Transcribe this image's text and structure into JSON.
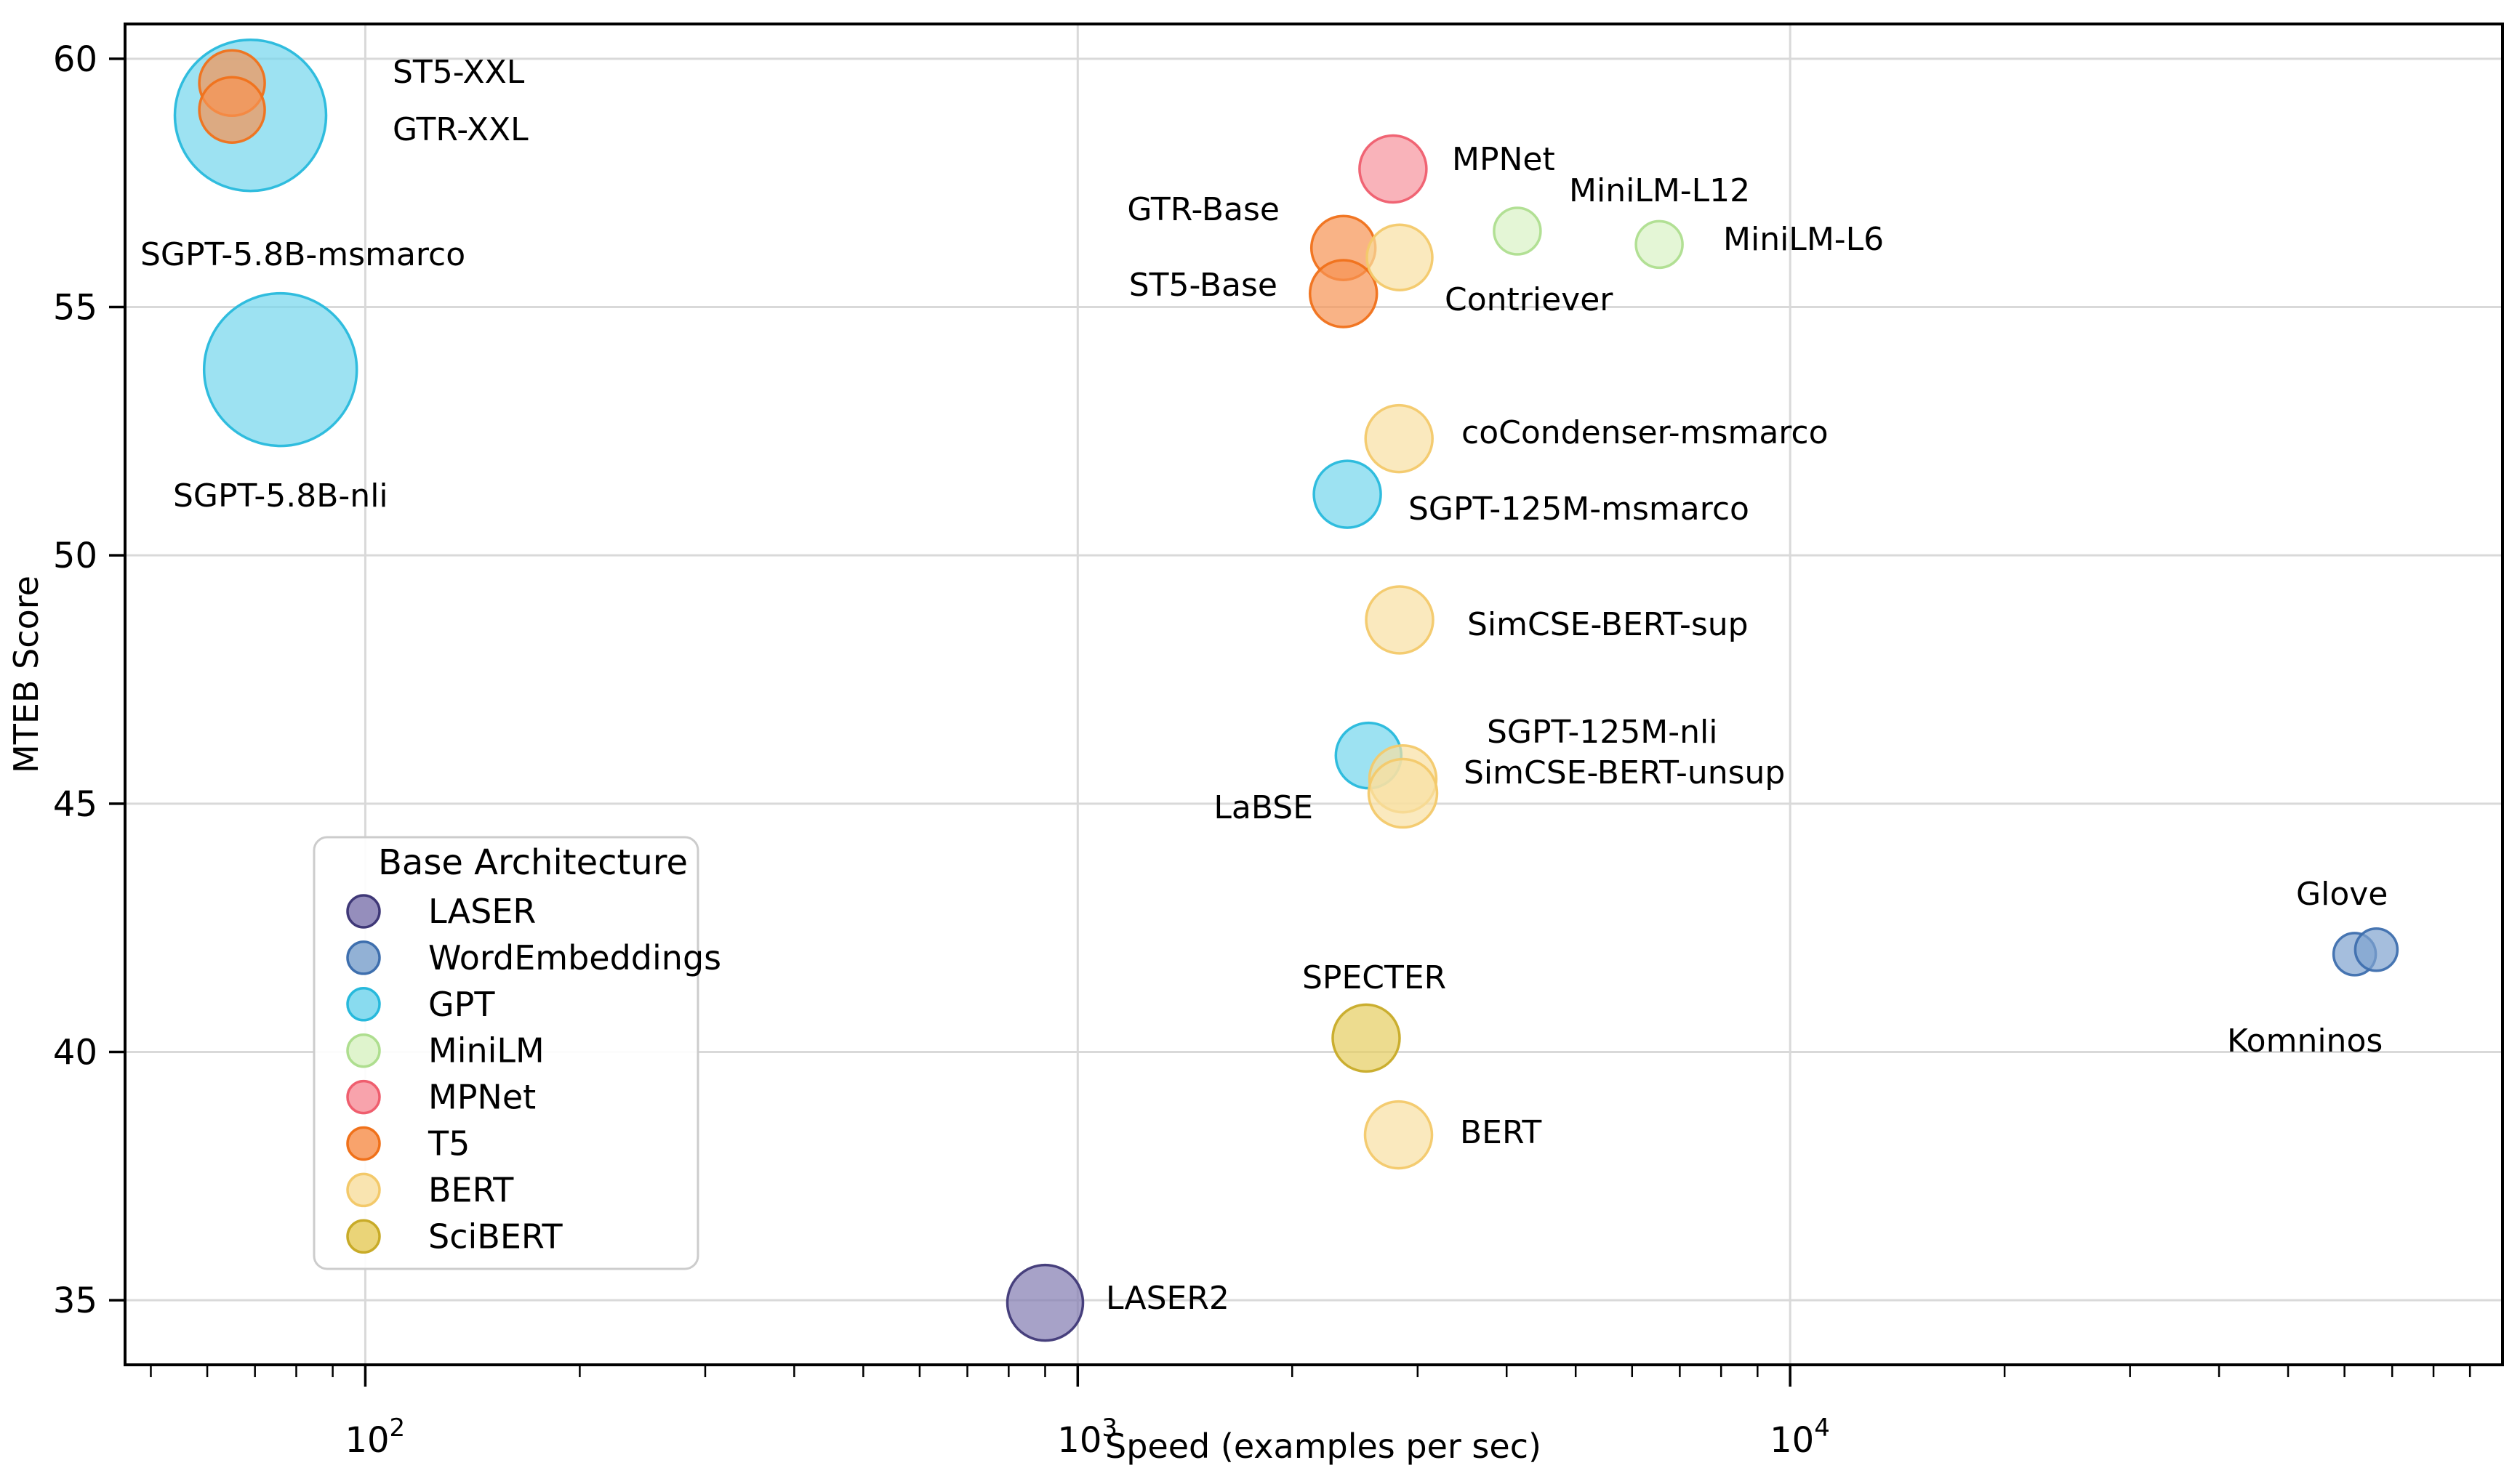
{
  "chart_data": {
    "type": "scatter",
    "title": "",
    "xlabel": "Speed (examples per sec)",
    "ylabel": "MTEB Score",
    "x_scale": "log",
    "xlim": [
      46,
      100000
    ],
    "ylim": [
      33.7,
      60.7
    ],
    "x_ticks": [
      {
        "value": 100,
        "base": "10",
        "exponent": "2"
      },
      {
        "value": 1000,
        "base": "10",
        "exponent": "3"
      },
      {
        "value": 10000,
        "base": "10",
        "exponent": "4"
      }
    ],
    "y_ticks": [
      35,
      40,
      45,
      50,
      55,
      60
    ],
    "grid": true,
    "grid_color": "#d9d9d9",
    "spine_color": "#000000",
    "legend": {
      "title": "Base Architecture",
      "position": "lower left",
      "entries": [
        {
          "label": "LASER",
          "fill": "#827ab0",
          "edge": "#3f3877"
        },
        {
          "label": "WordEmbeddings",
          "fill": "#7fa3ce",
          "edge": "#3e6fae"
        },
        {
          "label": "GPT",
          "fill": "#74d5ec",
          "edge": "#27b9dc"
        },
        {
          "label": "MiniLM",
          "fill": "#d9f2c4",
          "edge": "#aede8f"
        },
        {
          "label": "MPNet",
          "fill": "#f7939d",
          "edge": "#ef5e6e"
        },
        {
          "label": "T5",
          "fill": "#f79352",
          "edge": "#f0711a"
        },
        {
          "label": "BERT",
          "fill": "#f8dfa2",
          "edge": "#f3c96a"
        },
        {
          "label": "SciBERT",
          "fill": "#e6cd60",
          "edge": "#c8ab28"
        }
      ]
    },
    "points": [
      {
        "name": "SGPT-5.8B-msmarco",
        "architecture": "GPT",
        "speed": 69,
        "score": 58.86,
        "marker_radius": 104
      },
      {
        "name": "ST5-XXL",
        "architecture": "T5",
        "speed": 65,
        "score": 59.51,
        "marker_radius": 45
      },
      {
        "name": "GTR-XXL",
        "architecture": "T5",
        "speed": 65,
        "score": 58.97,
        "marker_radius": 45
      },
      {
        "name": "SGPT-5.8B-nli",
        "architecture": "GPT",
        "speed": 76,
        "score": 53.74,
        "marker_radius": 105
      },
      {
        "name": "MPNet",
        "architecture": "MPNet",
        "speed": 2770,
        "score": 57.78,
        "marker_radius": 46
      },
      {
        "name": "GTR-Base",
        "architecture": "T5",
        "speed": 2360,
        "score": 56.19,
        "marker_radius": 44
      },
      {
        "name": "ST5-Base",
        "architecture": "T5",
        "speed": 2360,
        "score": 55.27,
        "marker_radius": 46
      },
      {
        "name": "Contriever",
        "architecture": "BERT",
        "speed": 2830,
        "score": 56.0,
        "marker_radius": 45
      },
      {
        "name": "MiniLM-L12",
        "architecture": "MiniLM",
        "speed": 4140,
        "score": 56.53,
        "marker_radius": 32
      },
      {
        "name": "MiniLM-L6",
        "architecture": "MiniLM",
        "speed": 6550,
        "score": 56.26,
        "marker_radius": 32
      },
      {
        "name": "SGPT-125M-msmarco",
        "architecture": "GPT",
        "speed": 2390,
        "score": 51.23,
        "marker_radius": 46
      },
      {
        "name": "coCondenser-msmarco",
        "architecture": "BERT",
        "speed": 2825,
        "score": 52.35,
        "marker_radius": 46
      },
      {
        "name": "SimCSE-BERT-sup",
        "architecture": "BERT",
        "speed": 2830,
        "score": 48.7,
        "marker_radius": 46
      },
      {
        "name": "SGPT-125M-nli",
        "architecture": "GPT",
        "speed": 2560,
        "score": 45.97,
        "marker_radius": 45
      },
      {
        "name": "SimCSE-BERT-unsup",
        "architecture": "BERT",
        "speed": 2860,
        "score": 45.5,
        "marker_radius": 46
      },
      {
        "name": "LaBSE",
        "architecture": "BERT",
        "speed": 2860,
        "score": 45.21,
        "marker_radius": 47
      },
      {
        "name": "Glove",
        "architecture": "WordEmbeddings",
        "speed": 62000,
        "score": 41.97,
        "marker_radius": 29
      },
      {
        "name": "Komninos",
        "architecture": "WordEmbeddings",
        "speed": 66500,
        "score": 42.06,
        "marker_radius": 29
      },
      {
        "name": "SPECTER",
        "architecture": "SciBERT",
        "speed": 2540,
        "score": 40.28,
        "marker_radius": 46
      },
      {
        "name": "BERT",
        "architecture": "BERT",
        "speed": 2820,
        "score": 38.33,
        "marker_radius": 46
      },
      {
        "name": "LASER2",
        "architecture": "LASER",
        "speed": 900,
        "score": 34.95,
        "marker_radius": 52
      }
    ]
  }
}
